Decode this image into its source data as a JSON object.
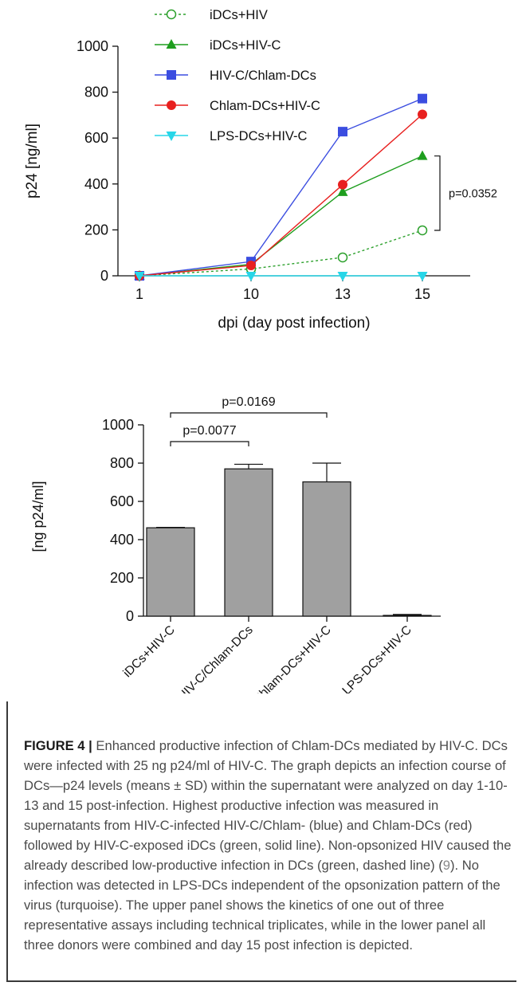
{
  "chart_data": [
    {
      "type": "line",
      "x": [
        "1",
        "10",
        "13",
        "15"
      ],
      "xlabel": "dpi (day post infection)",
      "ylabel": "p24 [ng/ml]",
      "ylim": [
        0,
        1000
      ],
      "yticks": [
        "0",
        "200",
        "400",
        "600",
        "800",
        "1000"
      ],
      "legend_position": "top-left",
      "series": [
        {
          "name": "iDCs+HIV",
          "color": "#2ca02c",
          "marker": "open-circle",
          "line": "dashed",
          "values": [
            0,
            30,
            80,
            198
          ]
        },
        {
          "name": "iDCs+HIV-C",
          "color": "#1e9e1e",
          "marker": "triangle-up",
          "line": "solid",
          "values": [
            0,
            50,
            365,
            522
          ]
        },
        {
          "name": "HIV-C/Chlam-DCs",
          "color": "#3b4de0",
          "marker": "square",
          "line": "solid",
          "values": [
            0,
            62,
            628,
            772
          ]
        },
        {
          "name": "Chlam-DCs+HIV-C",
          "color": "#e8201f",
          "marker": "circle",
          "line": "solid",
          "values": [
            0,
            45,
            397,
            703
          ]
        },
        {
          "name": "LPS-DCs+HIV-C",
          "color": "#27d6e8",
          "marker": "triangle-down",
          "line": "solid",
          "values": [
            0,
            0,
            0,
            0
          ]
        }
      ],
      "annotations": [
        {
          "text": "p=0.0352"
        }
      ]
    },
    {
      "type": "bar",
      "categories": [
        "iDCs+HIV-C",
        "HIV-C/Chlam-DCs",
        "Chlam-DCs+HIV-C",
        "LPS-DCs+HIV-C"
      ],
      "values": [
        462,
        770,
        702,
        4
      ],
      "errors": [
        2,
        24,
        98,
        5
      ],
      "bar_color": "#a0a0a0",
      "ylabel": "[ng p24/ml]",
      "ylim": [
        0,
        1000
      ],
      "yticks": [
        "0",
        "200",
        "400",
        "600",
        "800",
        "1000"
      ],
      "annotations": [
        {
          "text": "p=0.0077",
          "from": "iDCs+HIV-C",
          "to": "HIV-C/Chlam-DCs"
        },
        {
          "text": "p=0.0169",
          "from": "iDCs+HIV-C",
          "to": "Chlam-DCs+HIV-C"
        }
      ]
    }
  ],
  "caption": {
    "label": "FIGURE 4 |",
    "text_before_ref": "Enhanced productive infection of Chlam-DCs mediated by HIV-C. DCs were infected with 25 ng p24/ml of HIV-C. The graph depicts an infection course of DCs—p24 levels (means ± SD) within the supernatant were analyzed on day 1-10-13 and 15 post-infection. Highest productive infection was measured in supernatants from HIV-C-infected HIV-C/Chlam- (blue) and Chlam-DCs (red) followed by HIV-C-exposed iDCs (green, solid line). Non-opsonized HIV caused the already described low-productive infection in DCs (green, dashed line) (",
    "ref": "9",
    "text_after_ref": "). No infection was detected in LPS-DCs independent of the opsonization pattern of the virus (turquoise). The upper panel shows the kinetics of one out of three representative assays including technical triplicates, while in the lower panel all three donors were combined and day 15 post infection is depicted."
  }
}
